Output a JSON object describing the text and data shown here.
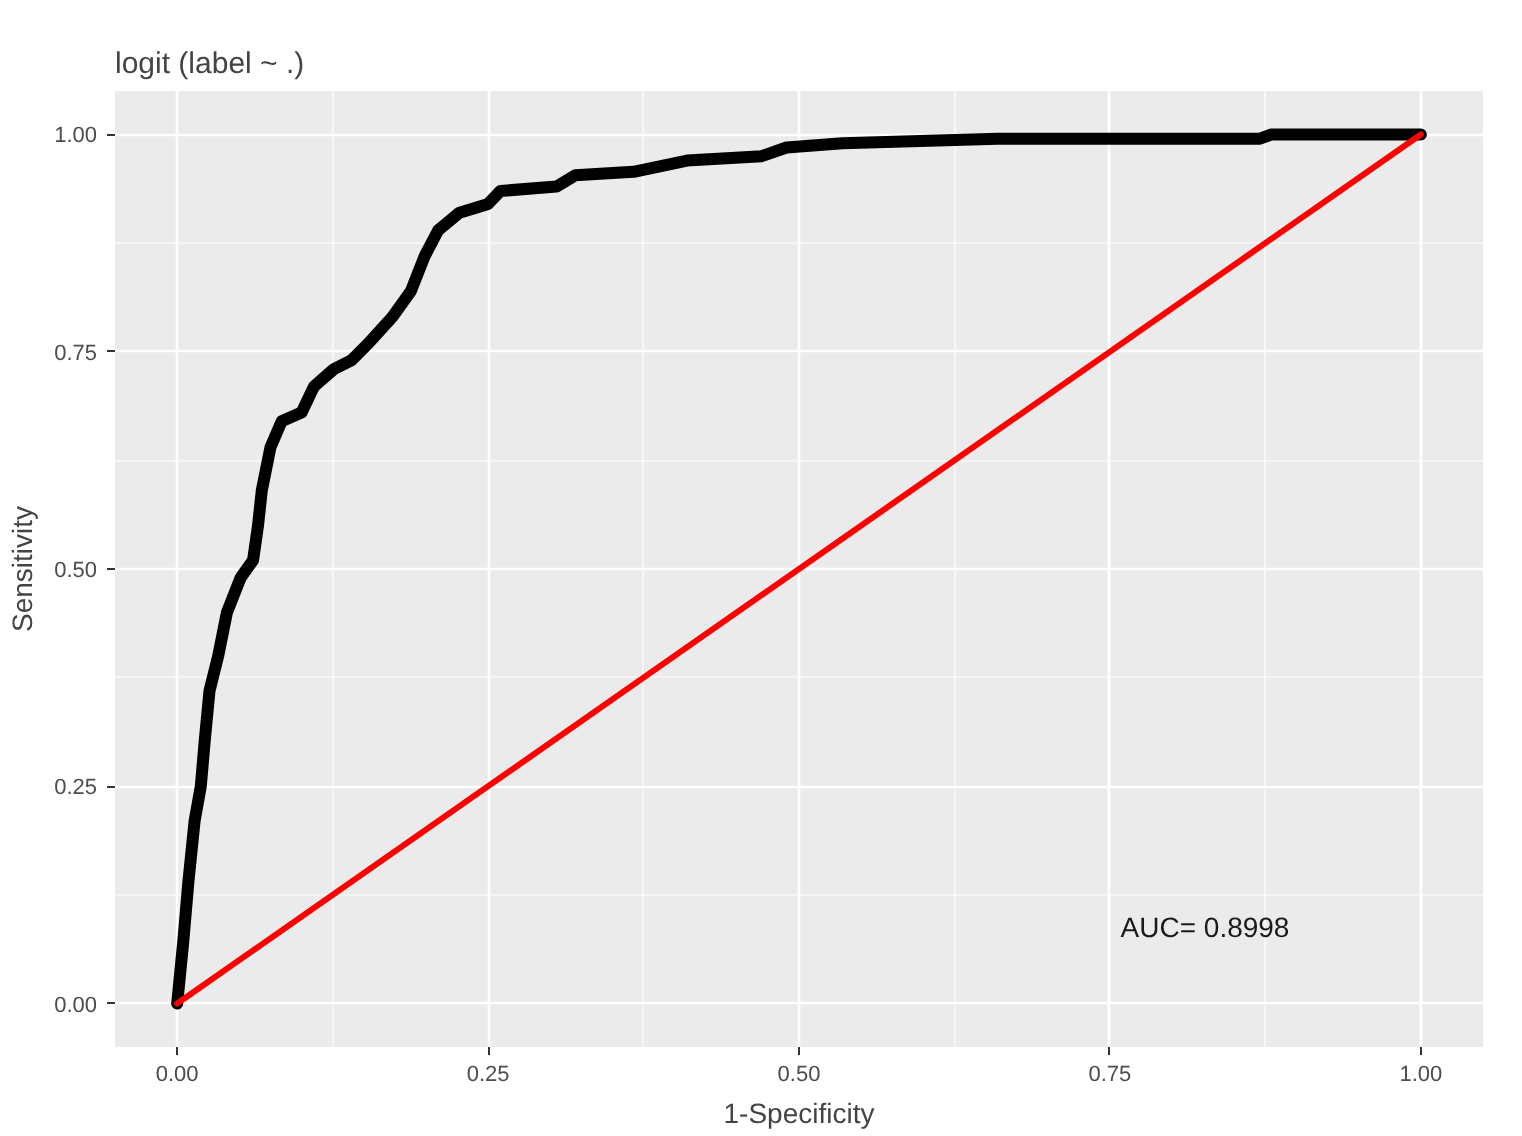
{
  "chart_data": {
    "type": "line",
    "title": "logit (label ~ .)",
    "xlabel": "1-Specificity",
    "ylabel": "Sensitivity",
    "xlim": [
      -0.05,
      1.05
    ],
    "ylim": [
      -0.05,
      1.05
    ],
    "xticks": [
      {
        "value": 0,
        "label": "0.00"
      },
      {
        "value": 0.25,
        "label": "0.25"
      },
      {
        "value": 0.5,
        "label": "0.50"
      },
      {
        "value": 0.75,
        "label": "0.75"
      },
      {
        "value": 1,
        "label": "1.00"
      }
    ],
    "yticks": [
      {
        "value": 0,
        "label": "0.00"
      },
      {
        "value": 0.25,
        "label": "0.25"
      },
      {
        "value": 0.5,
        "label": "0.50"
      },
      {
        "value": 0.75,
        "label": "0.75"
      },
      {
        "value": 1,
        "label": "1.00"
      }
    ],
    "grid": true,
    "marker": "none",
    "line_style": "solid",
    "series": [
      {
        "color": "#000000",
        "x": [
          0,
          0.005,
          0.009,
          0.014,
          0.019,
          0.022,
          0.026,
          0.033,
          0.04,
          0.051,
          0.061,
          0.065,
          0.068,
          0.075,
          0.084,
          0.1,
          0.11,
          0.126,
          0.14,
          0.154,
          0.173,
          0.188,
          0.199,
          0.21,
          0.227,
          0.25,
          0.26,
          0.305,
          0.32,
          0.367,
          0.41,
          0.47,
          0.49,
          0.535,
          0.66,
          0.87,
          0.88,
          1
        ],
        "values": [
          0,
          0.073,
          0.14,
          0.21,
          0.25,
          0.3,
          0.36,
          0.4,
          0.45,
          0.49,
          0.51,
          0.55,
          0.59,
          0.64,
          0.67,
          0.68,
          0.71,
          0.73,
          0.74,
          0.76,
          0.79,
          0.82,
          0.86,
          0.89,
          0.91,
          0.92,
          0.935,
          0.94,
          0.953,
          0.957,
          0.97,
          0.975,
          0.985,
          0.99,
          0.995,
          0.995,
          1,
          1
        ]
      },
      {
        "color": "#ff0000",
        "x": [
          0,
          1
        ],
        "values": [
          0,
          1
        ]
      }
    ],
    "annotations": [
      "AUC= 0.8998"
    ]
  }
}
